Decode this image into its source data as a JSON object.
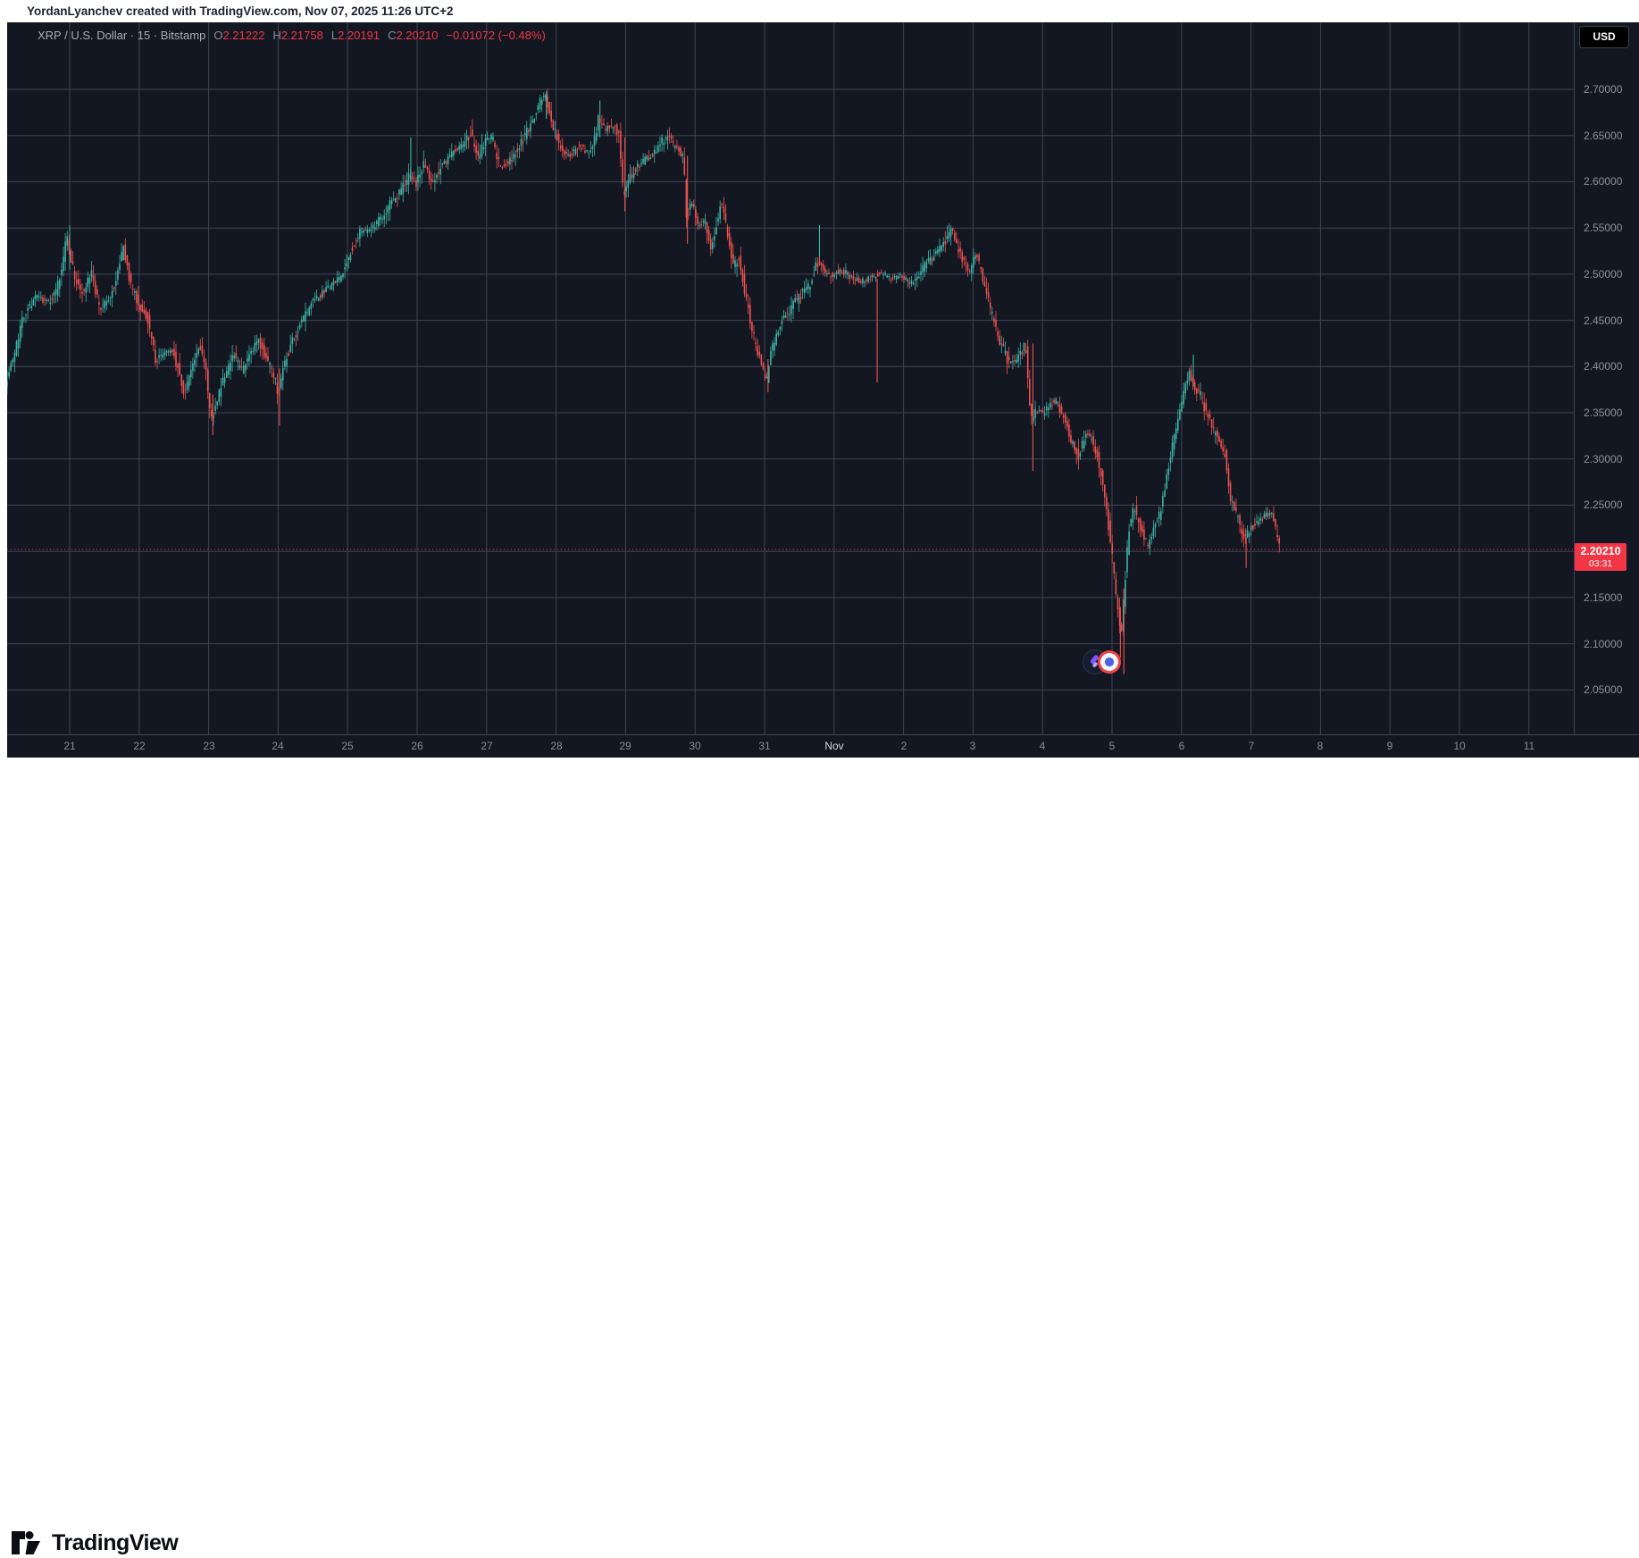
{
  "attribution": {
    "text": "YordanLyanchev created with TradingView.com, Nov 07, 2025 11:26 UTC+2"
  },
  "legend": {
    "title": "XRP / U.S. Dollar · 15 · Bitstamp",
    "o_label": "O",
    "open": "2.21222",
    "h_label": "H",
    "high": "2.21758",
    "l_label": "L",
    "low": "2.20191",
    "c_label": "C",
    "close": "2.20210",
    "change": "−0.01072 (−0.48%)"
  },
  "currency_button": {
    "label": "USD"
  },
  "last_price": {
    "value": "2.20210",
    "countdown": "03:31"
  },
  "price_axis": {
    "labels": [
      "2.70000",
      "2.65000",
      "2.60000",
      "2.55000",
      "2.50000",
      "2.45000",
      "2.40000",
      "2.35000",
      "2.30000",
      "2.25000",
      "2.15000",
      "2.10000",
      "2.05000"
    ],
    "gridlines": [
      "2.70",
      "2.65",
      "2.60",
      "2.55",
      "2.50",
      "2.45",
      "2.40",
      "2.35",
      "2.30",
      "2.25",
      "2.20",
      "2.15",
      "2.10",
      "2.05"
    ]
  },
  "time_axis": {
    "labels": [
      "21",
      "22",
      "23",
      "24",
      "25",
      "26",
      "27",
      "28",
      "29",
      "30",
      "31",
      "Nov",
      "2",
      "3",
      "4",
      "5",
      "6",
      "7",
      "8",
      "9",
      "10",
      "11"
    ],
    "highlight": "Nov"
  },
  "footer": {
    "logo_text": "TradingView"
  },
  "colors": {
    "chart_bg": "#131722",
    "grid": "#3f4452",
    "up": "#3eb3a6",
    "down": "#f0524f",
    "accent_red": "#f23645",
    "axis_text": "#8c919c"
  },
  "chart_data": {
    "type": "candlestick",
    "symbol": "XRP/USD",
    "interval": "15",
    "exchange": "Bitstamp",
    "ohlc": {
      "open": 2.21222,
      "high": 2.21758,
      "low": 2.20191,
      "close": 2.2021,
      "change": -0.01072,
      "change_pct": -0.48
    },
    "last_price": 2.2021,
    "y_gridlines": [
      2.7,
      2.65,
      2.6,
      2.55,
      2.5,
      2.45,
      2.4,
      2.35,
      2.3,
      2.25,
      2.2,
      2.15,
      2.1,
      2.05
    ],
    "x_categories": [
      "Oct 21",
      "Oct 22",
      "Oct 23",
      "Oct 24",
      "Oct 25",
      "Oct 26",
      "Oct 27",
      "Oct 28",
      "Oct 29",
      "Oct 30",
      "Oct 31",
      "Nov 1",
      "Nov 2",
      "Nov 3",
      "Nov 4",
      "Nov 5",
      "Nov 6",
      "Nov 7",
      "Nov 8",
      "Nov 9",
      "Nov 10",
      "Nov 11"
    ],
    "visible_range_days": [
      -0.9,
      21.6
    ],
    "price_path": [
      [
        -0.9,
        2.383
      ],
      [
        -0.78,
        2.41
      ],
      [
        -0.62,
        2.46
      ],
      [
        -0.45,
        2.475
      ],
      [
        -0.3,
        2.47
      ],
      [
        -0.18,
        2.478
      ],
      [
        -0.08,
        2.505
      ],
      [
        -0.02,
        2.545
      ],
      [
        0.04,
        2.52
      ],
      [
        0.1,
        2.495
      ],
      [
        0.22,
        2.48
      ],
      [
        0.34,
        2.5
      ],
      [
        0.46,
        2.462
      ],
      [
        0.6,
        2.472
      ],
      [
        0.72,
        2.5
      ],
      [
        0.8,
        2.528
      ],
      [
        0.9,
        2.49
      ],
      [
        1.02,
        2.468
      ],
      [
        1.15,
        2.452
      ],
      [
        1.27,
        2.405
      ],
      [
        1.38,
        2.415
      ],
      [
        1.5,
        2.418
      ],
      [
        1.6,
        2.395
      ],
      [
        1.67,
        2.372
      ],
      [
        1.76,
        2.392
      ],
      [
        1.9,
        2.422
      ],
      [
        1.99,
        2.4
      ],
      [
        2.06,
        2.338
      ],
      [
        2.14,
        2.362
      ],
      [
        2.25,
        2.39
      ],
      [
        2.38,
        2.412
      ],
      [
        2.5,
        2.397
      ],
      [
        2.62,
        2.41
      ],
      [
        2.74,
        2.428
      ],
      [
        2.85,
        2.41
      ],
      [
        2.96,
        2.392
      ],
      [
        3.02,
        2.372
      ],
      [
        3.1,
        2.4
      ],
      [
        3.22,
        2.425
      ],
      [
        3.35,
        2.445
      ],
      [
        3.5,
        2.468
      ],
      [
        3.65,
        2.478
      ],
      [
        3.8,
        2.488
      ],
      [
        3.95,
        2.498
      ],
      [
        4.08,
        2.528
      ],
      [
        4.2,
        2.545
      ],
      [
        4.35,
        2.548
      ],
      [
        4.5,
        2.56
      ],
      [
        4.65,
        2.578
      ],
      [
        4.8,
        2.59
      ],
      [
        4.92,
        2.607
      ],
      [
        5.02,
        2.598
      ],
      [
        5.12,
        2.62
      ],
      [
        5.25,
        2.6
      ],
      [
        5.4,
        2.618
      ],
      [
        5.55,
        2.632
      ],
      [
        5.7,
        2.642
      ],
      [
        5.8,
        2.652
      ],
      [
        5.9,
        2.625
      ],
      [
        6.0,
        2.645
      ],
      [
        6.1,
        2.65
      ],
      [
        6.22,
        2.615
      ],
      [
        6.35,
        2.622
      ],
      [
        6.5,
        2.638
      ],
      [
        6.65,
        2.66
      ],
      [
        6.8,
        2.688
      ],
      [
        6.88,
        2.692
      ],
      [
        6.98,
        2.662
      ],
      [
        7.1,
        2.635
      ],
      [
        7.22,
        2.628
      ],
      [
        7.35,
        2.64
      ],
      [
        7.48,
        2.63
      ],
      [
        7.58,
        2.645
      ],
      [
        7.64,
        2.67
      ],
      [
        7.72,
        2.655
      ],
      [
        7.85,
        2.662
      ],
      [
        7.94,
        2.65
      ],
      [
        7.99,
        2.585
      ],
      [
        8.08,
        2.605
      ],
      [
        8.22,
        2.618
      ],
      [
        8.38,
        2.628
      ],
      [
        8.52,
        2.64
      ],
      [
        8.63,
        2.652
      ],
      [
        8.74,
        2.638
      ],
      [
        8.86,
        2.628
      ],
      [
        8.9,
        2.56
      ],
      [
        8.97,
        2.578
      ],
      [
        9.07,
        2.552
      ],
      [
        9.17,
        2.558
      ],
      [
        9.26,
        2.528
      ],
      [
        9.33,
        2.552
      ],
      [
        9.4,
        2.58
      ],
      [
        9.5,
        2.54
      ],
      [
        9.58,
        2.508
      ],
      [
        9.66,
        2.52
      ],
      [
        9.76,
        2.474
      ],
      [
        9.88,
        2.428
      ],
      [
        9.98,
        2.405
      ],
      [
        10.05,
        2.382
      ],
      [
        10.12,
        2.415
      ],
      [
        10.25,
        2.448
      ],
      [
        10.4,
        2.462
      ],
      [
        10.55,
        2.478
      ],
      [
        10.68,
        2.49
      ],
      [
        10.78,
        2.512
      ],
      [
        10.88,
        2.505
      ],
      [
        11.0,
        2.498
      ],
      [
        11.12,
        2.505
      ],
      [
        11.25,
        2.498
      ],
      [
        11.4,
        2.492
      ],
      [
        11.55,
        2.496
      ],
      [
        11.7,
        2.502
      ],
      [
        11.85,
        2.495
      ],
      [
        12.0,
        2.498
      ],
      [
        12.15,
        2.49
      ],
      [
        12.3,
        2.505
      ],
      [
        12.45,
        2.52
      ],
      [
        12.6,
        2.532
      ],
      [
        12.72,
        2.548
      ],
      [
        12.85,
        2.518
      ],
      [
        12.97,
        2.502
      ],
      [
        13.06,
        2.525
      ],
      [
        13.18,
        2.49
      ],
      [
        13.3,
        2.455
      ],
      [
        13.42,
        2.425
      ],
      [
        13.55,
        2.402
      ],
      [
        13.68,
        2.41
      ],
      [
        13.78,
        2.425
      ],
      [
        13.86,
        2.345
      ],
      [
        13.93,
        2.352
      ],
      [
        14.02,
        2.35
      ],
      [
        14.12,
        2.358
      ],
      [
        14.22,
        2.364
      ],
      [
        14.33,
        2.345
      ],
      [
        14.45,
        2.318
      ],
      [
        14.55,
        2.302
      ],
      [
        14.65,
        2.328
      ],
      [
        14.75,
        2.322
      ],
      [
        14.85,
        2.292
      ],
      [
        14.93,
        2.258
      ],
      [
        15.02,
        2.2
      ],
      [
        15.09,
        2.15
      ],
      [
        15.16,
        2.105
      ],
      [
        15.21,
        2.165
      ],
      [
        15.27,
        2.225
      ],
      [
        15.35,
        2.248
      ],
      [
        15.44,
        2.225
      ],
      [
        15.53,
        2.205
      ],
      [
        15.62,
        2.222
      ],
      [
        15.72,
        2.242
      ],
      [
        15.84,
        2.295
      ],
      [
        15.94,
        2.33
      ],
      [
        16.04,
        2.365
      ],
      [
        16.14,
        2.395
      ],
      [
        16.2,
        2.382
      ],
      [
        16.3,
        2.368
      ],
      [
        16.42,
        2.342
      ],
      [
        16.54,
        2.322
      ],
      [
        16.65,
        2.305
      ],
      [
        16.73,
        2.258
      ],
      [
        16.82,
        2.24
      ],
      [
        16.91,
        2.215
      ],
      [
        17.0,
        2.222
      ],
      [
        17.1,
        2.23
      ],
      [
        17.22,
        2.238
      ],
      [
        17.32,
        2.242
      ],
      [
        17.4,
        2.215
      ],
      [
        17.45,
        2.202
      ]
    ],
    "long_wicks": [
      [
        0.0,
        2.553,
        2.505,
        "up"
      ],
      [
        2.06,
        2.37,
        2.326,
        "down"
      ],
      [
        3.02,
        2.398,
        2.336,
        "down"
      ],
      [
        4.91,
        2.648,
        2.6,
        "up"
      ],
      [
        6.86,
        2.698,
        2.668,
        "up"
      ],
      [
        7.63,
        2.688,
        2.648,
        "up"
      ],
      [
        7.99,
        2.648,
        2.568,
        "down"
      ],
      [
        8.89,
        2.628,
        2.533,
        "down"
      ],
      [
        10.05,
        2.408,
        2.372,
        "down"
      ],
      [
        10.79,
        2.553,
        2.512,
        "up"
      ],
      [
        11.62,
        2.495,
        2.383,
        "down"
      ],
      [
        13.86,
        2.425,
        2.287,
        "down"
      ],
      [
        15.12,
        2.14,
        2.085,
        "down"
      ],
      [
        15.17,
        2.16,
        2.067,
        "down"
      ],
      [
        16.17,
        2.413,
        2.378,
        "up"
      ],
      [
        16.93,
        2.215,
        2.182,
        "down"
      ]
    ]
  }
}
